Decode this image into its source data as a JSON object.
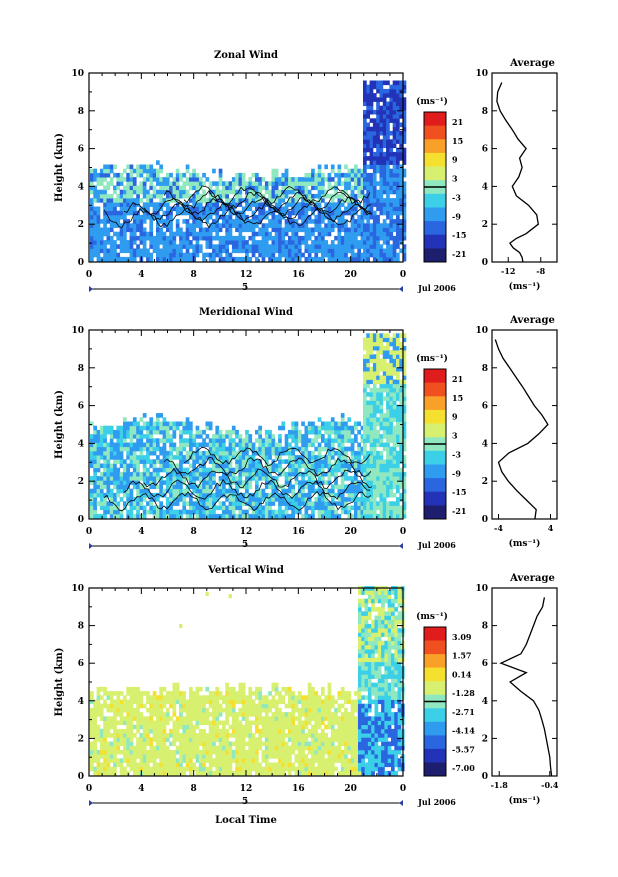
{
  "panels": [
    {
      "title": "Zonal Wind",
      "ylabel": "Height (km)",
      "yticks": [
        "0",
        "2",
        "4",
        "6",
        "8",
        "10"
      ],
      "xticks": [
        "0",
        "4",
        "8",
        "12",
        "16",
        "20",
        "0"
      ],
      "date_tick": "5",
      "date_label": "Jul 2006",
      "unit": "(ms⁻¹)",
      "cbar_ticks": [
        "21",
        "15",
        "9",
        "3",
        "-3",
        "-9",
        "-15",
        "-21"
      ],
      "avg_title": "Average",
      "avg_xticks": [
        "-12",
        "-8"
      ],
      "avg_unit": "(ms⁻¹)"
    },
    {
      "title": "Meridional Wind",
      "ylabel": "Height (km)",
      "yticks": [
        "0",
        "2",
        "4",
        "6",
        "8",
        "10"
      ],
      "xticks": [
        "0",
        "4",
        "8",
        "12",
        "16",
        "20",
        "0"
      ],
      "date_tick": "5",
      "date_label": "Jul 2006",
      "unit": "(ms⁻¹)",
      "cbar_ticks": [
        "21",
        "15",
        "9",
        "3",
        "-3",
        "-9",
        "-15",
        "-21"
      ],
      "avg_title": "Average",
      "avg_xticks": [
        "-4",
        "4"
      ],
      "avg_unit": "(ms⁻¹)"
    },
    {
      "title": "Vertical Wind",
      "ylabel": "Height (km)",
      "yticks": [
        "0",
        "2",
        "4",
        "6",
        "8",
        "10"
      ],
      "xticks": [
        "0",
        "4",
        "8",
        "12",
        "16",
        "20",
        "0"
      ],
      "date_tick": "5",
      "date_label": "Jul 2006",
      "unit": "(ms⁻¹)",
      "cbar_ticks": [
        "3.09",
        "1.57",
        "0.14",
        "-1.28",
        "-2.71",
        "-4.14",
        "-5.57",
        "-7.00"
      ],
      "avg_title": "Average",
      "avg_xticks": [
        "-1.8",
        "-0.4"
      ],
      "avg_unit": "(ms⁻¹)",
      "xlabel": "Local Time"
    }
  ],
  "colors": [
    "#1e1e6e",
    "#2233b8",
    "#2a66e0",
    "#2f9cf0",
    "#3ccfe8",
    "#8fe8c0",
    "#d8f070",
    "#f5e030",
    "#f8a028",
    "#f05020",
    "#e01c1c"
  ],
  "chart_data": [
    {
      "type": "heatmap",
      "title": "Zonal Wind",
      "xlabel": "",
      "ylabel": "Height (km)",
      "xlim": [
        0,
        24
      ],
      "ylim": [
        0,
        10
      ],
      "clim": [
        -21,
        21
      ],
      "colorbar_ticks": [
        21,
        15,
        9,
        3,
        -3,
        -9,
        -15,
        -21
      ],
      "profile": {
        "title": "Average",
        "xlim": [
          -14,
          -6
        ],
        "height": [
          0,
          0.25,
          0.5,
          0.75,
          1,
          1.25,
          1.5,
          2,
          2.5,
          3,
          3.5,
          4,
          4.5,
          5,
          5.5,
          6,
          6.5,
          7,
          7.5,
          8,
          8.5,
          9,
          9.5
        ],
        "value": [
          -10.2,
          -10.3,
          -10.6,
          -11.4,
          -11.8,
          -11,
          -9.8,
          -8.3,
          -8.5,
          -9.5,
          -11,
          -11.5,
          -10.7,
          -10.3,
          -10.6,
          -9.8,
          -10.8,
          -11.5,
          -12.3,
          -13,
          -13.4,
          -13.3,
          -12.8
        ]
      }
    },
    {
      "type": "heatmap",
      "title": "Meridional Wind",
      "xlabel": "",
      "ylabel": "Height (km)",
      "xlim": [
        0,
        24
      ],
      "ylim": [
        0,
        10
      ],
      "clim": [
        -21,
        21
      ],
      "colorbar_ticks": [
        21,
        15,
        9,
        3,
        -3,
        -9,
        -15,
        -21
      ],
      "profile": {
        "title": "Average",
        "xlim": [
          -5,
          5
        ],
        "height": [
          0,
          0.5,
          1,
          1.5,
          2,
          2.5,
          3,
          3.5,
          4,
          4.5,
          5,
          5.5,
          6,
          6.5,
          7,
          7.5,
          8,
          8.5,
          9,
          9.5
        ],
        "value": [
          1.6,
          1.8,
          0.3,
          -1.2,
          -2.5,
          -3.5,
          -4,
          -2.4,
          0.5,
          2.2,
          3.6,
          2.7,
          1.5,
          0.6,
          -0.3,
          -1.3,
          -2.3,
          -3.3,
          -4,
          -4.5
        ]
      }
    },
    {
      "type": "heatmap",
      "title": "Vertical Wind",
      "xlabel": "Local Time",
      "ylabel": "Height (km)",
      "xlim": [
        0,
        24
      ],
      "ylim": [
        0,
        10
      ],
      "clim": [
        -7.0,
        3.09
      ],
      "colorbar_ticks": [
        3.09,
        1.57,
        0.14,
        -1.28,
        -2.71,
        -4.14,
        -5.57,
        -7.0
      ],
      "profile": {
        "title": "Average",
        "xlim": [
          -2,
          -0.2
        ],
        "height": [
          0,
          0.5,
          1,
          1.5,
          2,
          2.5,
          3,
          3.5,
          4,
          4.5,
          5,
          5.5,
          6,
          6.5,
          7,
          7.5,
          8,
          8.5,
          9,
          9.5
        ],
        "value": [
          -0.35,
          -0.38,
          -0.4,
          -0.45,
          -0.5,
          -0.55,
          -0.62,
          -0.7,
          -0.85,
          -1.2,
          -1.5,
          -1.05,
          -1.75,
          -1.2,
          -1.05,
          -0.95,
          -0.85,
          -0.75,
          -0.6,
          -0.55
        ]
      }
    }
  ]
}
